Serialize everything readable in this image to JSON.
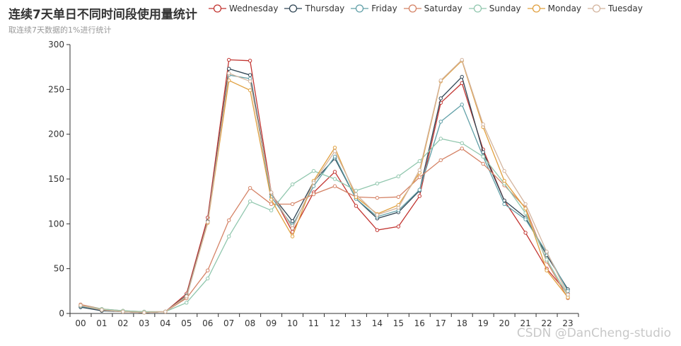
{
  "chart_data": {
    "type": "line",
    "title": "连续7天单日不同时间段使用量统计",
    "subtitle": "取连续7天数据的1%进行统计",
    "categories": [
      "00",
      "01",
      "02",
      "03",
      "04",
      "05",
      "06",
      "07",
      "08",
      "09",
      "10",
      "11",
      "12",
      "13",
      "14",
      "15",
      "16",
      "17",
      "18",
      "19",
      "20",
      "21",
      "22",
      "23"
    ],
    "ylim": [
      0,
      300
    ],
    "yticks": [
      0,
      50,
      100,
      150,
      200,
      250,
      300
    ],
    "legend_position": "top",
    "grid": false,
    "series": [
      {
        "name": "Wednesday",
        "color": "#c23531",
        "values": [
          8,
          4,
          2,
          1,
          2,
          22,
          107,
          283,
          282,
          135,
          91,
          135,
          158,
          120,
          93,
          97,
          131,
          235,
          257,
          183,
          126,
          90,
          50,
          22
        ]
      },
      {
        "name": "Thursday",
        "color": "#2f4554",
        "values": [
          7,
          3,
          2,
          1,
          2,
          20,
          103,
          273,
          266,
          133,
          103,
          147,
          173,
          128,
          106,
          113,
          137,
          240,
          264,
          180,
          126,
          107,
          65,
          27
        ]
      },
      {
        "name": "Friday",
        "color": "#61a0a8",
        "values": [
          8,
          4,
          2,
          1,
          2,
          18,
          102,
          266,
          262,
          130,
          98,
          142,
          175,
          128,
          108,
          115,
          138,
          214,
          233,
          175,
          122,
          105,
          68,
          25
        ]
      },
      {
        "name": "Saturday",
        "color": "#d48265",
        "values": [
          10,
          5,
          3,
          2,
          2,
          17,
          48,
          104,
          140,
          122,
          122,
          133,
          142,
          130,
          129,
          130,
          152,
          171,
          184,
          167,
          143,
          118,
          58,
          17
        ]
      },
      {
        "name": "Sunday",
        "color": "#91c7ae",
        "values": [
          9,
          5,
          3,
          2,
          2,
          12,
          39,
          86,
          125,
          115,
          144,
          159,
          150,
          137,
          145,
          153,
          170,
          195,
          190,
          175,
          145,
          112,
          60,
          20
        ]
      },
      {
        "name": "Monday",
        "color": "#e0a03f",
        "values": [
          9,
          4,
          2,
          1,
          2,
          19,
          101,
          260,
          249,
          127,
          86,
          148,
          185,
          130,
          111,
          121,
          157,
          259,
          282,
          208,
          148,
          117,
          48,
          18
        ]
      },
      {
        "name": "Tuesday",
        "color": "#d3b49e",
        "values": [
          9,
          4,
          2,
          1,
          2,
          19,
          102,
          268,
          259,
          135,
          95,
          146,
          181,
          133,
          110,
          118,
          160,
          260,
          283,
          211,
          159,
          122,
          69,
          21
        ]
      }
    ]
  },
  "watermark": "CSDN @DanCheng-studio"
}
